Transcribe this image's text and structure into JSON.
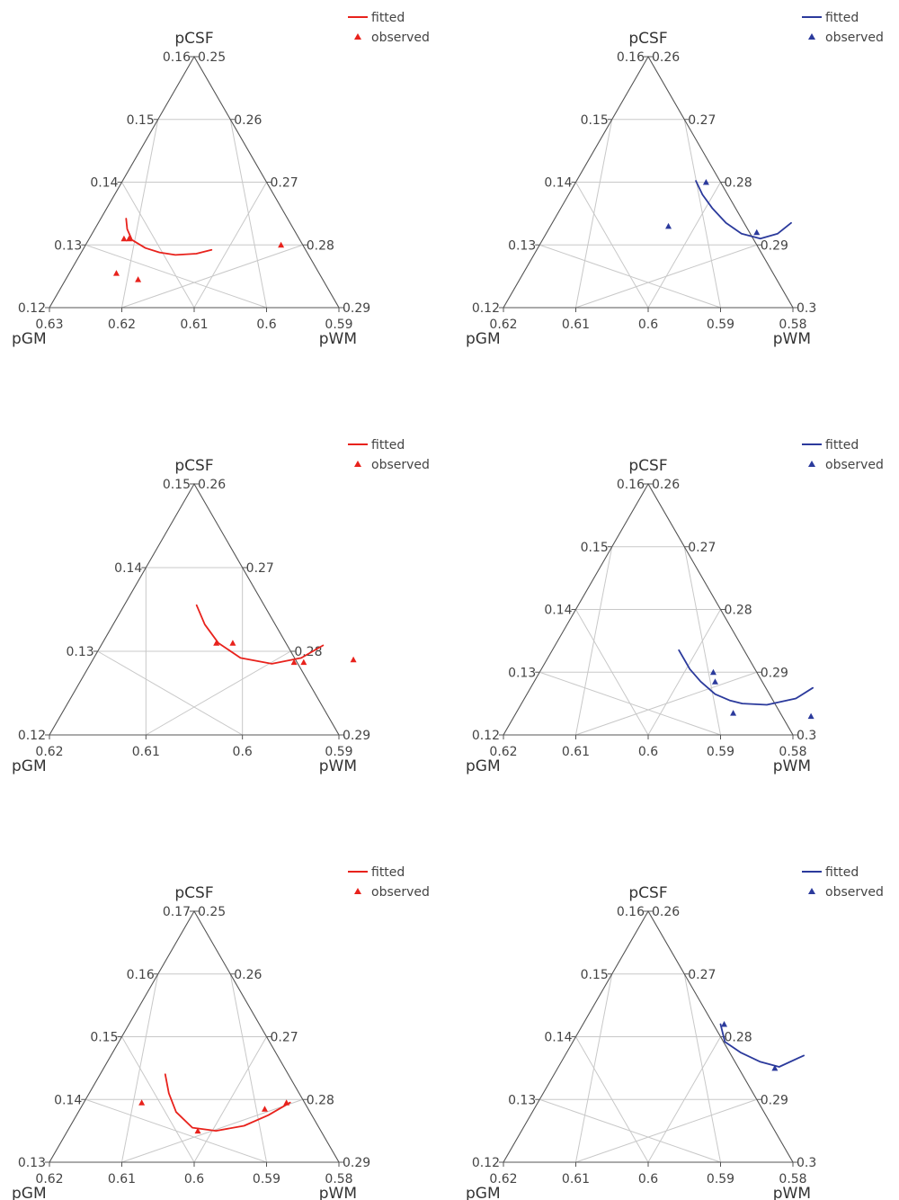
{
  "chart_data": [
    {
      "type": "ternary",
      "color": "#e8221c",
      "axis_labels": {
        "top": "pCSF",
        "left": "pGM",
        "right": "pWM"
      },
      "csf_range": [
        0.12,
        0.16
      ],
      "gm_range": [
        0.59,
        0.63
      ],
      "wm_range": [
        0.25,
        0.29
      ],
      "csf_ticks": [
        "0.12",
        "0.13",
        "0.14",
        "0.15",
        "0.16"
      ],
      "gm_ticks": [
        "0.63",
        "0.62",
        "0.61",
        "0.6",
        "0.59"
      ],
      "wm_ticks": [
        "0.25",
        "0.26",
        "0.27",
        "0.28",
        "0.29"
      ],
      "legend": {
        "line": "fitted",
        "marker": "observed"
      },
      "series": [
        {
          "kind": "line",
          "label": "fitted",
          "points": [
            {
              "csf": 0.1342,
              "gm": 0.5935,
              "wm": 0.2723
            },
            {
              "csf": 0.1325,
              "gm": 0.5945,
              "wm": 0.273
            },
            {
              "csf": 0.1308,
              "gm": 0.596,
              "wm": 0.2732
            },
            {
              "csf": 0.1295,
              "gm": 0.5985,
              "wm": 0.272
            },
            {
              "csf": 0.1288,
              "gm": 0.6008,
              "wm": 0.2704
            },
            {
              "csf": 0.1284,
              "gm": 0.6032,
              "wm": 0.2684
            },
            {
              "csf": 0.1286,
              "gm": 0.606,
              "wm": 0.2654
            },
            {
              "csf": 0.1292,
              "gm": 0.6078,
              "wm": 0.263
            }
          ]
        },
        {
          "kind": "marker",
          "label": "observed",
          "points": [
            {
              "csf": 0.13,
              "gm": 0.617,
              "wm": 0.253
            },
            {
              "csf": 0.131,
              "gm": 0.5955,
              "wm": 0.2735
            },
            {
              "csf": 0.131,
              "gm": 0.5948,
              "wm": 0.2742
            },
            {
              "csf": 0.1245,
              "gm": 0.6,
              "wm": 0.2755
            },
            {
              "csf": 0.1255,
              "gm": 0.5965,
              "wm": 0.278
            }
          ]
        }
      ]
    },
    {
      "type": "ternary",
      "color": "#2b3a9c",
      "axis_labels": {
        "top": "pCSF",
        "left": "pGM",
        "right": "pWM"
      },
      "csf_range": [
        0.12,
        0.16
      ],
      "gm_range": [
        0.58,
        0.62
      ],
      "wm_range": [
        0.26,
        0.3
      ],
      "csf_ticks": [
        "0.12",
        "0.13",
        "0.14",
        "0.15",
        "0.16"
      ],
      "gm_ticks": [
        "0.62",
        "0.61",
        "0.6",
        "0.59",
        "0.58"
      ],
      "wm_ticks": [
        "0.26",
        "0.27",
        "0.28",
        "0.29",
        "0.3"
      ],
      "legend": {
        "line": "fitted",
        "marker": "observed"
      },
      "series": [
        {
          "kind": "line",
          "label": "fitted",
          "points": [
            {
              "csf": 0.1335,
              "gm": 0.613,
              "wm": 0.2535
            },
            {
              "csf": 0.1318,
              "gm": 0.612,
              "wm": 0.2562
            },
            {
              "csf": 0.131,
              "gm": 0.61,
              "wm": 0.259
            },
            {
              "csf": 0.1318,
              "gm": 0.607,
              "wm": 0.2612
            },
            {
              "csf": 0.1335,
              "gm": 0.604,
              "wm": 0.2625
            },
            {
              "csf": 0.1358,
              "gm": 0.601,
              "wm": 0.2632
            },
            {
              "csf": 0.138,
              "gm": 0.5985,
              "wm": 0.2635
            },
            {
              "csf": 0.1402,
              "gm": 0.5965,
              "wm": 0.2633
            }
          ]
        },
        {
          "kind": "marker",
          "label": "observed",
          "points": [
            {
              "csf": 0.132,
              "gm": 0.609,
              "wm": 0.259
            },
            {
              "csf": 0.14,
              "gm": 0.598,
              "wm": 0.262
            },
            {
              "csf": 0.133,
              "gm": 0.5963,
              "wm": 0.2707
            }
          ]
        }
      ]
    },
    {
      "type": "ternary",
      "color": "#e8221c",
      "axis_labels": {
        "top": "pCSF",
        "left": "pGM",
        "right": "pWM"
      },
      "csf_range": [
        0.12,
        0.15
      ],
      "gm_range": [
        0.59,
        0.62
      ],
      "wm_range": [
        0.26,
        0.29
      ],
      "csf_ticks": [
        "0.12",
        "0.13",
        "0.14",
        "0.15"
      ],
      "gm_ticks": [
        "0.62",
        "0.61",
        "0.6",
        "0.59"
      ],
      "wm_ticks": [
        "0.26",
        "0.27",
        "0.28",
        "0.29"
      ],
      "legend": {
        "line": "fitted",
        "marker": "observed"
      },
      "series": [
        {
          "kind": "line",
          "label": "fitted",
          "points": [
            {
              "csf": 0.1307,
              "gm": 0.613,
              "wm": 0.2563
            },
            {
              "csf": 0.1292,
              "gm": 0.6115,
              "wm": 0.2593
            },
            {
              "csf": 0.1285,
              "gm": 0.6088,
              "wm": 0.2627
            },
            {
              "csf": 0.1292,
              "gm": 0.6052,
              "wm": 0.2656
            },
            {
              "csf": 0.131,
              "gm": 0.602,
              "wm": 0.267
            },
            {
              "csf": 0.1332,
              "gm": 0.5995,
              "wm": 0.2673
            },
            {
              "csf": 0.1355,
              "gm": 0.5975,
              "wm": 0.267
            }
          ]
        },
        {
          "kind": "marker",
          "label": "observed",
          "points": [
            {
              "csf": 0.129,
              "gm": 0.617,
              "wm": 0.254
            },
            {
              "csf": 0.1287,
              "gm": 0.612,
              "wm": 0.2593
            },
            {
              "csf": 0.1287,
              "gm": 0.611,
              "wm": 0.2603
            },
            {
              "csf": 0.131,
              "gm": 0.6035,
              "wm": 0.2655
            },
            {
              "csf": 0.131,
              "gm": 0.6018,
              "wm": 0.2672
            }
          ]
        }
      ]
    },
    {
      "type": "ternary",
      "color": "#2b3a9c",
      "axis_labels": {
        "top": "pCSF",
        "left": "pGM",
        "right": "pWM"
      },
      "csf_range": [
        0.12,
        0.16
      ],
      "gm_range": [
        0.58,
        0.62
      ],
      "wm_range": [
        0.26,
        0.3
      ],
      "csf_ticks": [
        "0.12",
        "0.13",
        "0.14",
        "0.15",
        "0.16"
      ],
      "gm_ticks": [
        "0.62",
        "0.61",
        "0.6",
        "0.59",
        "0.58"
      ],
      "wm_ticks": [
        "0.26",
        "0.27",
        "0.28",
        "0.29",
        "0.3"
      ],
      "legend": {
        "line": "fitted",
        "marker": "observed"
      },
      "series": [
        {
          "kind": "line",
          "label": "fitted",
          "points": [
            {
              "csf": 0.1275,
              "gm": 0.619,
              "wm": 0.2535
            },
            {
              "csf": 0.1258,
              "gm": 0.6175,
              "wm": 0.2567
            },
            {
              "csf": 0.1248,
              "gm": 0.614,
              "wm": 0.2612
            },
            {
              "csf": 0.125,
              "gm": 0.6105,
              "wm": 0.2645
            },
            {
              "csf": 0.1255,
              "gm": 0.6085,
              "wm": 0.266
            },
            {
              "csf": 0.1265,
              "gm": 0.606,
              "wm": 0.2675
            },
            {
              "csf": 0.1285,
              "gm": 0.603,
              "wm": 0.2685
            },
            {
              "csf": 0.1305,
              "gm": 0.6005,
              "wm": 0.269
            },
            {
              "csf": 0.1335,
              "gm": 0.5975,
              "wm": 0.269
            }
          ]
        },
        {
          "kind": "marker",
          "label": "observed",
          "points": [
            {
              "csf": 0.123,
              "gm": 0.621,
              "wm": 0.256
            },
            {
              "csf": 0.1235,
              "gm": 0.61,
              "wm": 0.2665
            },
            {
              "csf": 0.1285,
              "gm": 0.605,
              "wm": 0.2665
            },
            {
              "csf": 0.13,
              "gm": 0.604,
              "wm": 0.266
            }
          ]
        }
      ]
    },
    {
      "type": "ternary",
      "color": "#e8221c",
      "axis_labels": {
        "top": "pCSF",
        "left": "pGM",
        "right": "pWM"
      },
      "csf_range": [
        0.13,
        0.17
      ],
      "gm_range": [
        0.58,
        0.62
      ],
      "wm_range": [
        0.25,
        0.29
      ],
      "csf_ticks": [
        "0.13",
        "0.14",
        "0.15",
        "0.16",
        "0.17"
      ],
      "gm_ticks": [
        "0.62",
        "0.61",
        "0.6",
        "0.59",
        "0.58"
      ],
      "wm_ticks": [
        "0.25",
        "0.26",
        "0.27",
        "0.28",
        "0.29"
      ],
      "legend": {
        "line": "fitted",
        "marker": "observed"
      },
      "series": [
        {
          "kind": "line",
          "label": "fitted",
          "points": [
            {
              "csf": 0.1395,
              "gm": 0.6085,
              "wm": 0.252
            },
            {
              "csf": 0.1375,
              "gm": 0.6065,
              "wm": 0.256
            },
            {
              "csf": 0.1358,
              "gm": 0.604,
              "wm": 0.2602
            },
            {
              "csf": 0.135,
              "gm": 0.6005,
              "wm": 0.2645
            },
            {
              "csf": 0.1355,
              "gm": 0.597,
              "wm": 0.2675
            },
            {
              "csf": 0.138,
              "gm": 0.5935,
              "wm": 0.2685
            },
            {
              "csf": 0.141,
              "gm": 0.591,
              "wm": 0.268
            },
            {
              "csf": 0.144,
              "gm": 0.589,
              "wm": 0.267
            }
          ]
        },
        {
          "kind": "marker",
          "label": "observed",
          "points": [
            {
              "csf": 0.1395,
              "gm": 0.608,
              "wm": 0.2525
            },
            {
              "csf": 0.1385,
              "gm": 0.6055,
              "wm": 0.256
            },
            {
              "csf": 0.135,
              "gm": 0.598,
              "wm": 0.267
            },
            {
              "csf": 0.1395,
              "gm": 0.588,
              "wm": 0.2725
            }
          ]
        }
      ]
    },
    {
      "type": "ternary",
      "color": "#2b3a9c",
      "axis_labels": {
        "top": "pCSF",
        "left": "pGM",
        "right": "pWM"
      },
      "csf_range": [
        0.12,
        0.16
      ],
      "gm_range": [
        0.58,
        0.62
      ],
      "wm_range": [
        0.26,
        0.3
      ],
      "csf_ticks": [
        "0.12",
        "0.13",
        "0.14",
        "0.15",
        "0.16"
      ],
      "gm_ticks": [
        "0.62",
        "0.61",
        "0.6",
        "0.59",
        "0.58"
      ],
      "wm_ticks": [
        "0.26",
        "0.27",
        "0.28",
        "0.29",
        "0.3"
      ],
      "legend": {
        "line": "fitted",
        "marker": "observed"
      },
      "series": [
        {
          "kind": "line",
          "label": "fitted",
          "points": [
            {
              "csf": 0.137,
              "gm": 0.613,
              "wm": 0.25
            },
            {
              "csf": 0.1352,
              "gm": 0.6105,
              "wm": 0.2543
            },
            {
              "csf": 0.136,
              "gm": 0.6075,
              "wm": 0.2565
            },
            {
              "csf": 0.1375,
              "gm": 0.604,
              "wm": 0.2585
            },
            {
              "csf": 0.1392,
              "gm": 0.601,
              "wm": 0.2598
            },
            {
              "csf": 0.142,
              "gm": 0.599,
              "wm": 0.259
            }
          ]
        },
        {
          "kind": "marker",
          "label": "observed",
          "points": [
            {
              "csf": 0.135,
              "gm": 0.61,
              "wm": 0.255
            },
            {
              "csf": 0.142,
              "gm": 0.5995,
              "wm": 0.2585
            }
          ]
        }
      ]
    }
  ]
}
